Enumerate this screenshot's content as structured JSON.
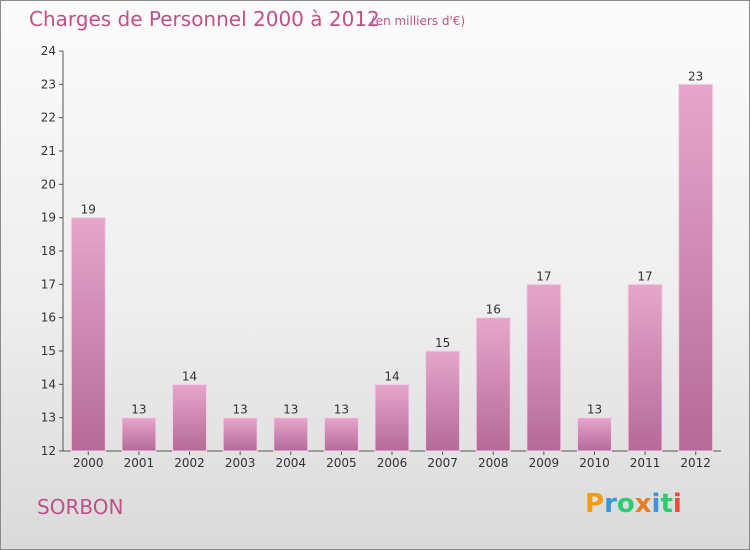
{
  "chart_data": {
    "type": "bar",
    "title": "Charges de Personnel 2000 à 2012",
    "subtitle": "(en milliers d'€)",
    "categories": [
      "2000",
      "2001",
      "2002",
      "2003",
      "2004",
      "2005",
      "2006",
      "2007",
      "2008",
      "2009",
      "2010",
      "2011",
      "2012"
    ],
    "values": [
      19,
      13,
      14,
      13,
      13,
      13,
      14,
      15,
      16,
      17,
      13,
      17,
      23
    ],
    "data_labels": [
      "19",
      "13",
      "14",
      "13",
      "13",
      "13",
      "14",
      "15",
      "16",
      "17",
      "13",
      "17",
      "23"
    ],
    "ylim": [
      12,
      24
    ],
    "yticks": [
      "12",
      "13",
      "14",
      "15",
      "16",
      "17",
      "18",
      "19",
      "20",
      "21",
      "22",
      "23",
      "24"
    ],
    "grid": false,
    "bar_color": "#d98ab8"
  },
  "place_name": "SORBON",
  "logo": {
    "text": "Proxiti",
    "letters": [
      "P",
      "r",
      "o",
      "x",
      "i",
      "t",
      "i"
    ],
    "colors": [
      "#f39c12",
      "#3498db",
      "#2ecc71",
      "#e67e22",
      "#3498db",
      "#2ecc71",
      "#e74c3c"
    ]
  }
}
